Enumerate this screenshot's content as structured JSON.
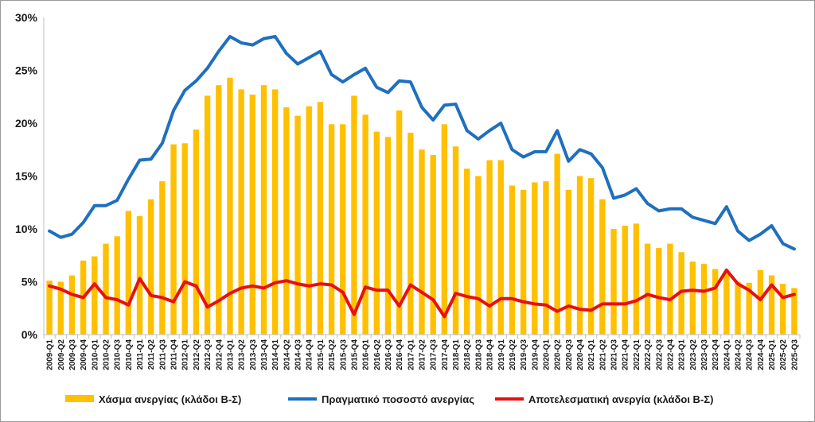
{
  "chart_data": {
    "type": "bar",
    "categories": [
      "2009-Q1",
      "2009-Q2",
      "2009-Q3",
      "2009-Q4",
      "2010-Q1",
      "2010-Q2",
      "2010-Q3",
      "2010-Q4",
      "2011-Q1",
      "2011-Q2",
      "2011-Q3",
      "2011-Q4",
      "2012-Q1",
      "2012-Q2",
      "2012-Q3",
      "2012-Q4",
      "2013-Q1",
      "2013-Q2",
      "2013-Q3",
      "2013-Q4",
      "2014-Q1",
      "2014-Q2",
      "2014-Q3",
      "2014-Q4",
      "2015-Q1",
      "2015-Q2",
      "2015-Q3",
      "2015-Q4",
      "2016-Q1",
      "2016-Q2",
      "2016-Q3",
      "2016-Q4",
      "2017-Q1",
      "2017-Q2",
      "2017-Q3",
      "2017-Q4",
      "2018-Q1",
      "2018-Q2",
      "2018-Q3",
      "2018-Q4",
      "2019-Q1",
      "2019-Q2",
      "2019-Q3",
      "2019-Q4",
      "2020-Q1",
      "2020-Q2",
      "2020-Q3",
      "2020-Q4",
      "2021-Q1",
      "2021-Q2",
      "2021-Q3",
      "2021-Q4",
      "2022-Q1",
      "2022-Q2",
      "2022-Q3",
      "2022-Q4",
      "2023-Q1",
      "2023-Q2",
      "2023-Q3",
      "2023-Q4",
      "2024-Q1",
      "2024-Q2",
      "2024-Q3",
      "2024-Q4",
      "2025-Q1",
      "2025-Q2",
      "2025-Q3"
    ],
    "series": [
      {
        "name": "Χάσμα ανεργίας (κλάδοι Β-Σ)",
        "kind": "bar",
        "color": "#FFC000",
        "values": [
          5.1,
          5.0,
          5.6,
          7.0,
          7.4,
          8.6,
          9.3,
          11.7,
          11.2,
          12.8,
          14.5,
          18.0,
          18.1,
          19.4,
          22.6,
          23.6,
          24.3,
          23.2,
          22.7,
          23.6,
          23.2,
          21.5,
          20.7,
          21.6,
          22.0,
          19.9,
          19.9,
          22.6,
          20.8,
          19.2,
          18.7,
          21.2,
          19.1,
          17.5,
          17.0,
          19.9,
          17.8,
          15.7,
          15.0,
          16.5,
          16.5,
          14.1,
          13.7,
          14.4,
          14.5,
          17.1,
          13.7,
          15.0,
          14.8,
          12.8,
          10.0,
          10.3,
          10.5,
          8.6,
          8.2,
          8.6,
          7.8,
          6.9,
          6.7,
          6.2,
          6.0,
          5.0,
          4.9,
          6.1,
          5.6,
          4.8,
          4.4
        ]
      },
      {
        "name": "Πραγματικό ποσοστό ανεργίας",
        "kind": "line",
        "color": "#1F6FBF",
        "values": [
          9.8,
          9.2,
          9.5,
          10.6,
          12.2,
          12.2,
          12.7,
          14.7,
          16.5,
          16.6,
          18.1,
          21.2,
          23.1,
          24.0,
          25.2,
          26.8,
          28.2,
          27.6,
          27.4,
          28.0,
          28.2,
          26.6,
          25.6,
          26.2,
          26.8,
          24.6,
          23.9,
          24.6,
          25.2,
          23.4,
          22.9,
          24.0,
          23.9,
          21.5,
          20.3,
          21.7,
          21.8,
          19.3,
          18.5,
          19.3,
          20.0,
          17.5,
          16.8,
          17.3,
          17.3,
          19.3,
          16.4,
          17.5,
          17.1,
          15.8,
          12.9,
          13.2,
          13.8,
          12.4,
          11.7,
          11.9,
          11.9,
          11.1,
          10.8,
          10.5,
          12.1,
          9.8,
          8.9,
          9.5,
          10.3,
          8.6,
          8.1
        ]
      },
      {
        "name": "Αποτελεσματική ανεργία (κλάδοι Β-Σ)",
        "kind": "line",
        "color": "#E81010",
        "values": [
          4.6,
          4.3,
          3.8,
          3.5,
          4.8,
          3.5,
          3.3,
          2.8,
          5.3,
          3.7,
          3.5,
          3.1,
          5.0,
          4.6,
          2.6,
          3.2,
          3.9,
          4.4,
          4.6,
          4.4,
          4.9,
          5.1,
          4.8,
          4.6,
          4.8,
          4.7,
          4.0,
          1.9,
          4.5,
          4.2,
          4.2,
          2.7,
          4.7,
          4.0,
          3.3,
          1.7,
          3.9,
          3.6,
          3.4,
          2.7,
          3.4,
          3.4,
          3.1,
          2.9,
          2.8,
          2.2,
          2.7,
          2.4,
          2.3,
          2.9,
          2.9,
          2.9,
          3.2,
          3.8,
          3.5,
          3.3,
          4.1,
          4.2,
          4.1,
          4.4,
          6.1,
          4.8,
          4.2,
          3.3,
          4.7,
          3.5,
          3.8
        ]
      }
    ],
    "ylim": [
      0,
      30
    ],
    "yticks": [
      "0%",
      "5%",
      "10%",
      "15%",
      "20%",
      "25%",
      "30%"
    ],
    "ytick_values": [
      0,
      5,
      10,
      15,
      20,
      25,
      30
    ],
    "grid": false,
    "legend": "bottom"
  }
}
